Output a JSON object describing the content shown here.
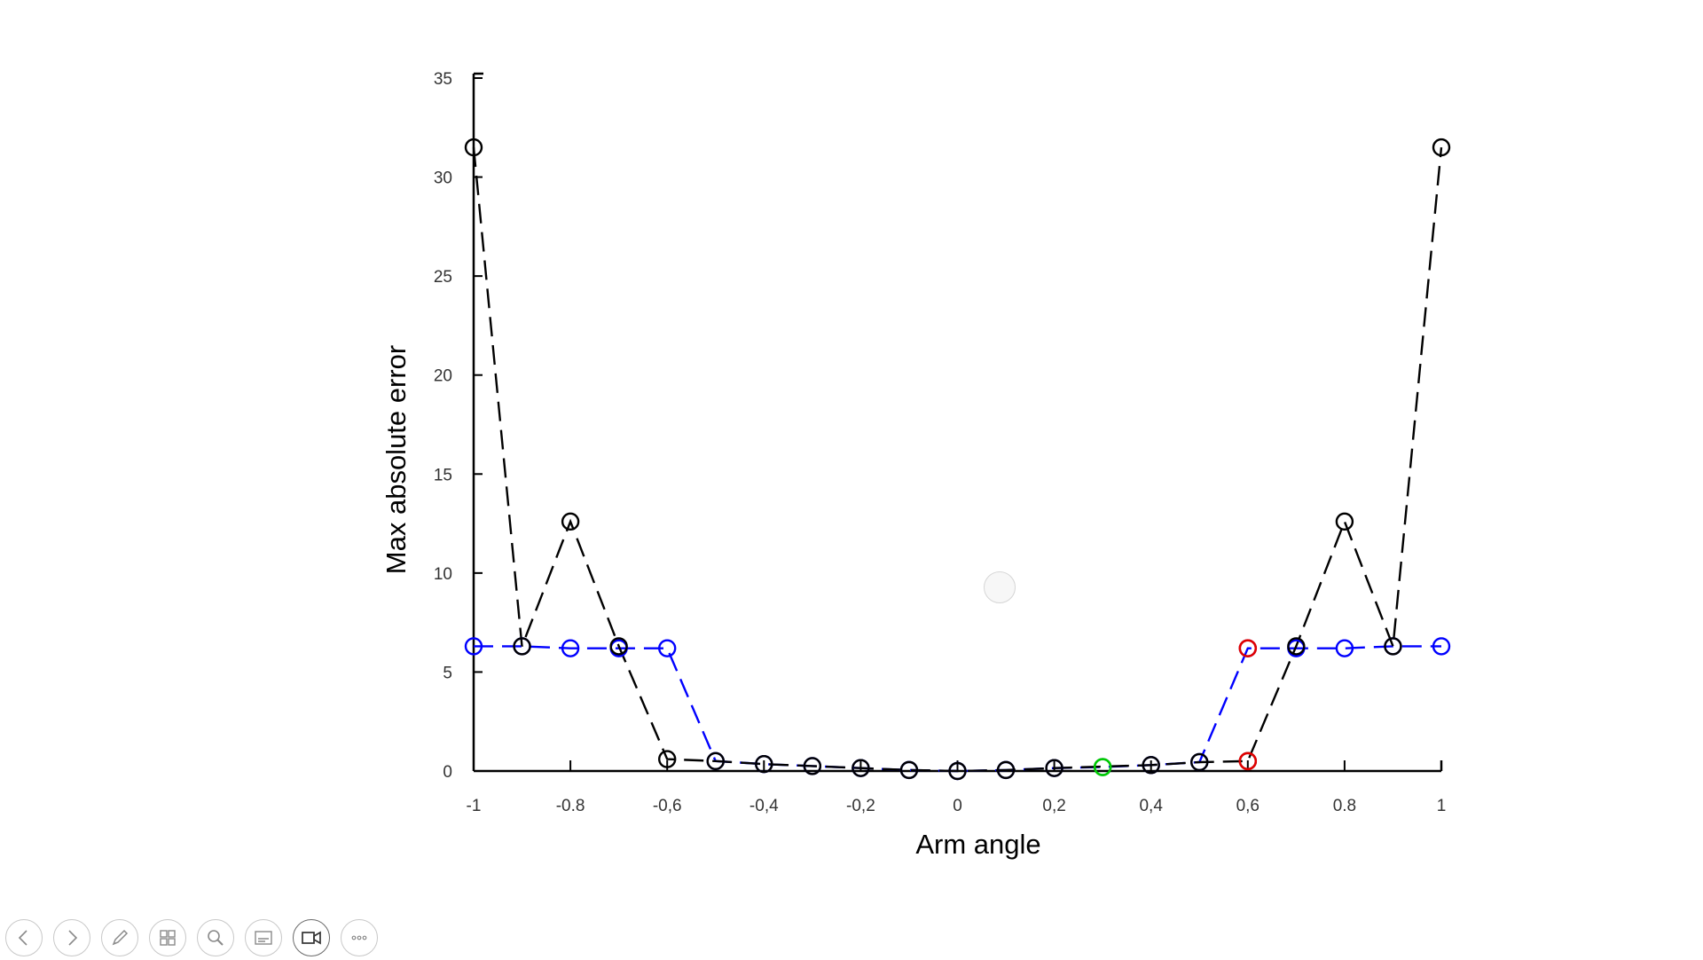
{
  "slide": {
    "toolbar": {
      "buttons": [
        {
          "name": "previous-slide-button",
          "icon": "arrow-left-icon"
        },
        {
          "name": "next-slide-button",
          "icon": "arrow-right-icon"
        },
        {
          "name": "pen-tool-button",
          "icon": "pen-icon"
        },
        {
          "name": "see-all-slides-button",
          "icon": "slides-grid-icon"
        },
        {
          "name": "zoom-button",
          "icon": "magnifier-icon"
        },
        {
          "name": "subtitles-button",
          "icon": "subtitles-icon"
        },
        {
          "name": "camera-button",
          "icon": "video-camera-icon",
          "active": true
        },
        {
          "name": "more-options-button",
          "icon": "ellipsis-icon"
        }
      ]
    }
  },
  "chart_data": {
    "type": "line",
    "title": "",
    "xlabel": "Arm angle",
    "ylabel": "Max absolute error",
    "xlim": [
      -1,
      1
    ],
    "ylim": [
      0,
      35
    ],
    "grid": false,
    "x_ticks": [
      "-1",
      "-0.8",
      "-0,6",
      "-0,4",
      "-0,2",
      "0",
      "0,2",
      "0,4",
      "0,6",
      "0.8",
      "1"
    ],
    "x_tick_values": [
      -1,
      -0.8,
      -0.6,
      -0.4,
      -0.2,
      0,
      0.2,
      0.4,
      0.6,
      0.8,
      1
    ],
    "y_ticks": [
      "0",
      "5",
      "10",
      "15",
      "20",
      "25",
      "30",
      "35"
    ],
    "y_tick_values": [
      0,
      5,
      10,
      15,
      20,
      25,
      30,
      35
    ],
    "series": [
      {
        "color": "#0000ff",
        "line_style": "dashed",
        "marker": "circle",
        "x": [
          -1,
          -0.9,
          -0.8,
          -0.7,
          -0.6,
          -0.5,
          -0.4,
          -0.3,
          -0.2,
          -0.1,
          0,
          0.1,
          0.2,
          0.3,
          0.4,
          0.5,
          0.6,
          0.7,
          0.8,
          0.9,
          1
        ],
        "y": [
          6.3,
          6.3,
          6.2,
          6.2,
          6.2,
          0.5,
          0.35,
          0.25,
          0.15,
          0.05,
          0,
          0.05,
          0.15,
          0.2,
          0.3,
          0.45,
          6.2,
          6.2,
          6.2,
          6.3,
          6.3
        ]
      },
      {
        "color": "#000000",
        "line_style": "dashed",
        "marker": "circle",
        "x": [
          -1,
          -0.9,
          -0.8,
          -0.7,
          -0.6,
          -0.5,
          -0.4,
          -0.3,
          -0.2,
          -0.1,
          0,
          0.1,
          0.2,
          0.4,
          0.5,
          0.6,
          0.7,
          0.8,
          0.9,
          1
        ],
        "y": [
          31.5,
          6.3,
          12.6,
          6.3,
          0.6,
          0.5,
          0.35,
          0.25,
          0.15,
          0.05,
          0,
          0.05,
          0.15,
          0.3,
          0.45,
          0.5,
          6.3,
          12.6,
          6.3,
          31.5
        ]
      }
    ],
    "highlighted_points": [
      {
        "x": 0.3,
        "y": 0.2,
        "color": "#00cc00"
      },
      {
        "x": 0.6,
        "y": 6.2,
        "color": "#e00000"
      },
      {
        "x": 0.6,
        "y": 0.5,
        "color": "#e00000"
      }
    ]
  }
}
